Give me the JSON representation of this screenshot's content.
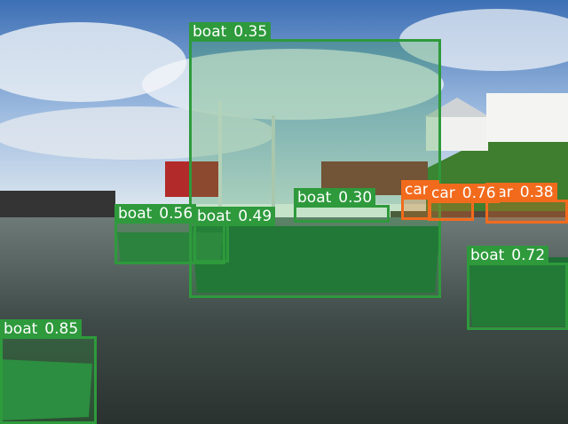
{
  "image": {
    "scene": "harbor with fishing boats at low tide, wharf, houses on hill, blue sky"
  },
  "colors": {
    "boat": "#2e9a3c",
    "car": "#f26b1d",
    "water": "#3f4b48",
    "sky": "#6f9bd0"
  },
  "detections": [
    {
      "class": "boat",
      "score": "0.35",
      "name": "detection-boat-large"
    },
    {
      "class": "boat",
      "score": "0.30",
      "name": "detection-boat-mast"
    },
    {
      "class": "boat",
      "score": "0.56",
      "name": "detection-boat-left"
    },
    {
      "class": "boat",
      "score": "0.49",
      "name": "detection-boat-middle"
    },
    {
      "class": "boat",
      "score": "0.72",
      "name": "detection-boat-right"
    },
    {
      "class": "boat",
      "score": "0.85",
      "name": "detection-boat-bottom-left"
    },
    {
      "class": "car",
      "score": "",
      "name": "detection-car-1"
    },
    {
      "class": "car",
      "score": "0.76",
      "name": "detection-car-2"
    },
    {
      "class": "car",
      "score": "0.38",
      "name": "detection-car-3"
    }
  ]
}
